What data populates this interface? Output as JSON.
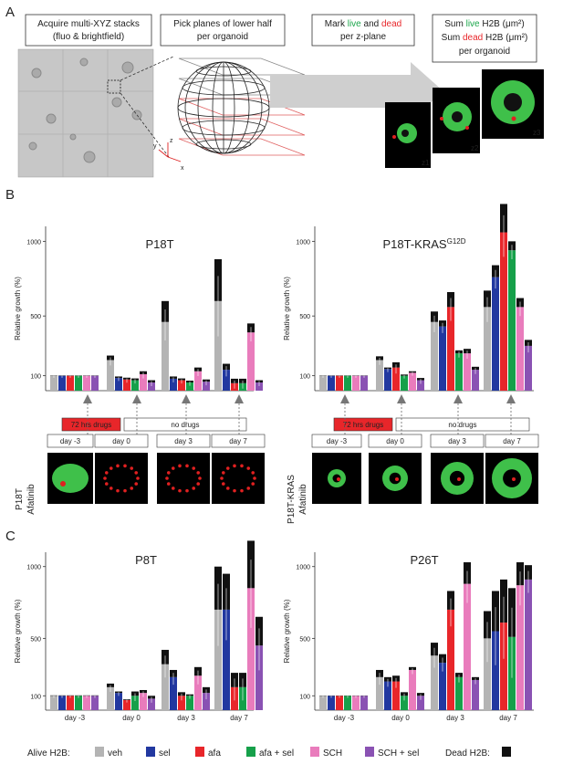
{
  "panel_letters": [
    "A",
    "B",
    "C"
  ],
  "panelA": {
    "step1": [
      "Acquire multi-XYZ stacks",
      "(fluo & brightfield)"
    ],
    "step2": [
      "Pick planes of lower half",
      "per organoid"
    ],
    "step3": {
      "pre": "Mark ",
      "live": "live",
      "mid": " and ",
      "dead": "dead",
      "line2": "per z-plane"
    },
    "step4": {
      "l1_pre": "Sum ",
      "l1_live": "live",
      "l1_post": " H2B (μm²)",
      "l2_pre": "Sum ",
      "l2_dead": "dead",
      "l2_post": " H2B (μm²)",
      "l3": "per organoid"
    },
    "axis_labels": [
      "x",
      "y",
      "z"
    ],
    "z_labels": [
      "z1",
      "z2",
      "z3"
    ]
  },
  "timeline": {
    "drug_box": "72 hrs drugs",
    "nodrug_box": "no drugs"
  },
  "image_row_labels": {
    "left": [
      "P18T",
      "Afatinib"
    ],
    "right": [
      "P18T-KRAS",
      "Afatinib"
    ]
  },
  "legend": {
    "alive_label": "Alive H2B:",
    "dead_label": "Dead H2B:",
    "items": [
      {
        "label": "veh",
        "color": "#b4b4b4"
      },
      {
        "label": "sel",
        "color": "#2238a0"
      },
      {
        "label": "afa",
        "color": "#e8262a"
      },
      {
        "label": "afa + sel",
        "color": "#16a04a"
      },
      {
        "label": "SCH",
        "color": "#e97cbc"
      },
      {
        "label": "SCH + sel",
        "color": "#8a52b3"
      }
    ],
    "dead_color": "#111111"
  },
  "chart_data": [
    {
      "type": "bar",
      "stacked": true,
      "title": "P18T",
      "title_sup": "",
      "ylabel": "Relative growth (%)",
      "yticks": [
        100,
        500,
        1000
      ],
      "ylim": [
        0,
        1100
      ],
      "categories": [],
      "timepoints_hint": [
        "day -3",
        "day 0",
        "day 3",
        "day 7"
      ],
      "series_names": [
        "veh",
        "sel",
        "afa",
        "afa + sel",
        "SCH",
        "SCH + sel"
      ],
      "groups": [
        {
          "alive": [
            100,
            100,
            100,
            100,
            100,
            100
          ],
          "dead": [
            2,
            2,
            2,
            2,
            2,
            2
          ]
        },
        {
          "alive": [
            205,
            85,
            75,
            70,
            110,
            55
          ],
          "dead": [
            30,
            10,
            12,
            12,
            20,
            15
          ]
        },
        {
          "alive": [
            460,
            80,
            70,
            55,
            130,
            60
          ],
          "dead": [
            140,
            15,
            12,
            12,
            25,
            15
          ]
        },
        {
          "alive": [
            600,
            140,
            50,
            50,
            390,
            55
          ],
          "dead": [
            280,
            40,
            30,
            30,
            60,
            15
          ]
        }
      ]
    },
    {
      "type": "bar",
      "stacked": true,
      "title": "P18T-KRAS",
      "title_sup": "G12D",
      "ylabel": "Relative growth (%)",
      "yticks": [
        100,
        500,
        1000
      ],
      "ylim": [
        0,
        1100
      ],
      "categories": [],
      "timepoints_hint": [
        "day -3",
        "day 0",
        "day 3",
        "day 7"
      ],
      "series_names": [
        "veh",
        "sel",
        "afa",
        "afa + sel",
        "SCH",
        "SCH + sel"
      ],
      "groups": [
        {
          "alive": [
            100,
            100,
            100,
            100,
            100,
            100
          ],
          "dead": [
            2,
            2,
            2,
            2,
            2,
            2
          ]
        },
        {
          "alive": [
            205,
            145,
            155,
            100,
            120,
            70
          ],
          "dead": [
            25,
            10,
            35,
            8,
            10,
            15
          ]
        },
        {
          "alive": [
            460,
            430,
            560,
            250,
            250,
            140
          ],
          "dead": [
            70,
            40,
            100,
            20,
            30,
            20
          ]
        },
        {
          "alive": [
            560,
            760,
            1060,
            940,
            560,
            300
          ],
          "dead": [
            110,
            80,
            190,
            60,
            60,
            40
          ]
        }
      ]
    },
    {
      "type": "bar",
      "stacked": true,
      "title": "P8T",
      "title_sup": "",
      "ylabel": "Relative growth (%)",
      "yticks": [
        100,
        500,
        1000
      ],
      "ylim": [
        0,
        1100
      ],
      "categories": [
        "day -3",
        "day 0",
        "day 3",
        "day 7"
      ],
      "series_names": [
        "veh",
        "sel",
        "afa",
        "afa + sel",
        "SCH",
        "SCH + sel"
      ],
      "groups": [
        {
          "alive": [
            100,
            100,
            100,
            100,
            100,
            100
          ],
          "dead": [
            3,
            3,
            3,
            3,
            3,
            3
          ]
        },
        {
          "alive": [
            160,
            120,
            70,
            100,
            120,
            80
          ],
          "dead": [
            25,
            10,
            5,
            30,
            20,
            20
          ]
        },
        {
          "alive": [
            320,
            230,
            100,
            100,
            240,
            120
          ],
          "dead": [
            100,
            50,
            25,
            10,
            60,
            40
          ]
        },
        {
          "alive": [
            700,
            700,
            160,
            160,
            850,
            450
          ],
          "dead": [
            300,
            250,
            100,
            100,
            330,
            200
          ]
        }
      ]
    },
    {
      "type": "bar",
      "stacked": true,
      "title": "P26T",
      "title_sup": "",
      "ylabel": "Relative growth (%)",
      "yticks": [
        100,
        500,
        1000
      ],
      "ylim": [
        0,
        1100
      ],
      "categories": [
        "day -3",
        "day 0",
        "day 3",
        "day 7"
      ],
      "series_names": [
        "veh",
        "sel",
        "afa",
        "afa + sel",
        "SCH",
        "SCH + sel"
      ],
      "groups": [
        {
          "alive": [
            100,
            100,
            100,
            100,
            100,
            100
          ],
          "dead": [
            2,
            2,
            2,
            2,
            2,
            2
          ]
        },
        {
          "alive": [
            230,
            200,
            200,
            100,
            280,
            100
          ],
          "dead": [
            50,
            30,
            40,
            25,
            20,
            20
          ]
        },
        {
          "alive": [
            380,
            330,
            700,
            230,
            880,
            210
          ],
          "dead": [
            90,
            60,
            130,
            30,
            150,
            20
          ]
        },
        {
          "alive": [
            500,
            550,
            610,
            510,
            870,
            910
          ],
          "dead": [
            190,
            280,
            300,
            340,
            160,
            100
          ]
        }
      ]
    }
  ]
}
